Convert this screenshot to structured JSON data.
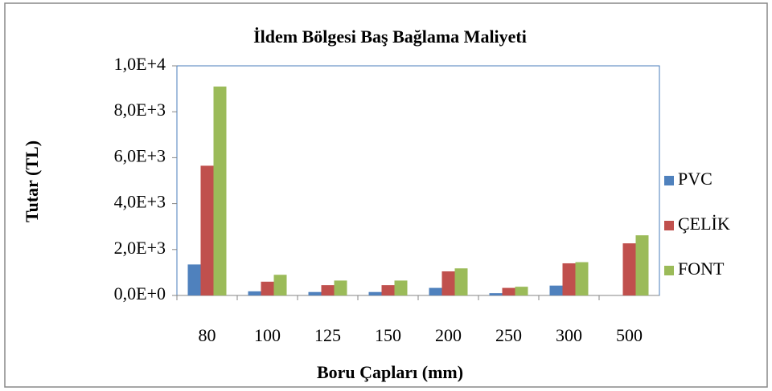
{
  "chart_data": {
    "type": "bar",
    "title": "İldem Bölgesi  Baş Bağlama Maliyeti",
    "x_label": "Boru  Çapları (mm)",
    "y_label": "Tutar (TL)",
    "categories": [
      "80",
      "100",
      "125",
      "150",
      "200",
      "250",
      "300",
      "500"
    ],
    "series": [
      {
        "name": "PVC",
        "color": "#4f81bd",
        "values": [
          1350,
          180,
          150,
          150,
          330,
          100,
          430,
          0
        ]
      },
      {
        "name": "ÇELİK",
        "color": "#c0504d",
        "values": [
          5650,
          600,
          450,
          450,
          1050,
          330,
          1400,
          2270
        ]
      },
      {
        "name": "FONT",
        "color": "#9bbb59",
        "values": [
          9100,
          900,
          650,
          650,
          1180,
          380,
          1450,
          2620
        ]
      }
    ],
    "ylim": [
      0,
      10000
    ],
    "yticks": [
      {
        "value": 0,
        "label": "0,0E+0"
      },
      {
        "value": 2000,
        "label": "2,0E+3"
      },
      {
        "value": 4000,
        "label": "4,0E+3"
      },
      {
        "value": 6000,
        "label": "6,0E+3"
      },
      {
        "value": 8000,
        "label": "8,0E+3"
      },
      {
        "value": 10000,
        "label": "1,0E+4"
      }
    ],
    "legend": "right"
  }
}
